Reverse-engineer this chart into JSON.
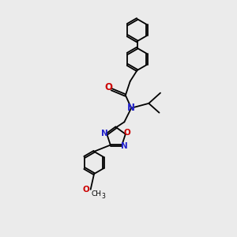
{
  "background_color": "#ebebeb",
  "bond_color": "#000000",
  "n_color": "#2222cc",
  "o_color": "#cc0000",
  "line_width": 1.3,
  "dbo": 0.025,
  "font_size": 7.5,
  "fig_size": [
    3.0,
    3.0
  ],
  "dpi": 100,
  "xlim": [
    0,
    10
  ],
  "ylim": [
    0,
    10
  ]
}
